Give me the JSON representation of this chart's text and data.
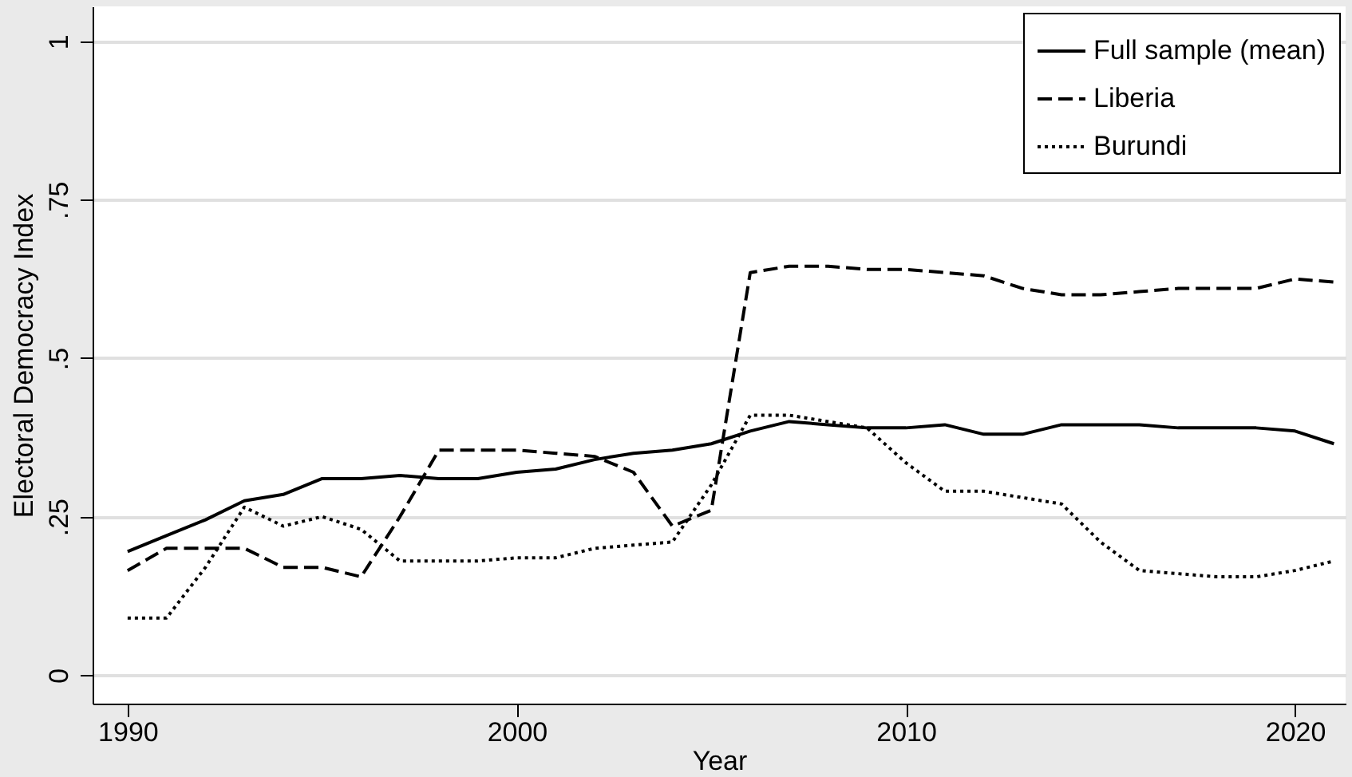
{
  "chart_data": {
    "type": "line",
    "xlabel": "Year",
    "ylabel": "Electoral Democracy Index",
    "x": [
      1990,
      1991,
      1992,
      1993,
      1994,
      1995,
      1996,
      1997,
      1998,
      1999,
      2000,
      2001,
      2002,
      2003,
      2004,
      2005,
      2006,
      2007,
      2008,
      2009,
      2010,
      2011,
      2012,
      2013,
      2014,
      2015,
      2016,
      2017,
      2018,
      2019,
      2020,
      2021
    ],
    "series": [
      {
        "name": "Full sample (mean)",
        "color": "#000000",
        "line_style": "solid",
        "values": [
          0.195,
          0.22,
          0.245,
          0.275,
          0.285,
          0.31,
          0.31,
          0.315,
          0.31,
          0.31,
          0.32,
          0.325,
          0.34,
          0.35,
          0.355,
          0.365,
          0.385,
          0.4,
          0.395,
          0.39,
          0.39,
          0.395,
          0.38,
          0.38,
          0.395,
          0.395,
          0.395,
          0.39,
          0.39,
          0.39,
          0.385,
          0.365
        ]
      },
      {
        "name": "Liberia",
        "color": "#000000",
        "line_style": "dashed",
        "values": [
          0.165,
          0.2,
          0.2,
          0.2,
          0.17,
          0.17,
          0.155,
          0.25,
          0.355,
          0.355,
          0.355,
          0.35,
          0.345,
          0.32,
          0.235,
          0.26,
          0.635,
          0.645,
          0.645,
          0.64,
          0.64,
          0.635,
          0.63,
          0.61,
          0.6,
          0.6,
          0.605,
          0.61,
          0.61,
          0.61,
          0.625,
          0.62
        ]
      },
      {
        "name": "Burundi",
        "color": "#000000",
        "line_style": "dotted",
        "values": [
          0.09,
          0.09,
          0.17,
          0.265,
          0.235,
          0.25,
          0.23,
          0.18,
          0.18,
          0.18,
          0.185,
          0.185,
          0.2,
          0.205,
          0.21,
          0.3,
          0.41,
          0.41,
          0.4,
          0.39,
          0.335,
          0.29,
          0.29,
          0.28,
          0.27,
          0.21,
          0.165,
          0.16,
          0.155,
          0.155,
          0.165,
          0.18
        ]
      }
    ],
    "xlim": [
      1989.1,
      2021.3
    ],
    "xticks": [
      1990,
      2000,
      2010,
      2020
    ],
    "ylim": [
      -0.045,
      1.055
    ],
    "yticks": [
      0,
      {
        "value": 0.25,
        "label": ".25"
      },
      {
        "value": 0.5,
        "label": ".5"
      },
      {
        "value": 0.75,
        "label": ".75"
      },
      1
    ],
    "grid": "y",
    "legend": "top right"
  }
}
